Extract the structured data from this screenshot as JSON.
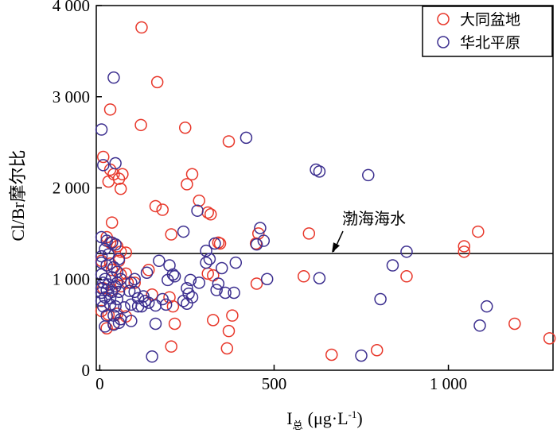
{
  "chart_data": {
    "type": "scatter",
    "xlabel": "I",
    "xlabel_sub": "总",
    "xlabel_unit": "(μg·L",
    "xlabel_unit_sup": "-1",
    "xlabel_unit_close": ")",
    "ylabel": "Cl/Br摩尔比",
    "xlim": [
      -10,
      1300
    ],
    "ylim": [
      0,
      4000
    ],
    "x_ticks": [
      0,
      500,
      1000
    ],
    "x_tick_labels": [
      "0",
      "500",
      "1 000"
    ],
    "y_ticks": [
      0,
      1000,
      2000,
      3000,
      4000
    ],
    "y_tick_labels": [
      "0",
      "1 000",
      "2 000",
      "3 000",
      "4 000"
    ],
    "legend_position": "top-right",
    "reference_line": {
      "y": 1280,
      "label": "渤海海水"
    },
    "series": [
      {
        "name": "大同盆地",
        "color": "#e8372a",
        "points": [
          [
            120,
            3760
          ],
          [
            165,
            3160
          ],
          [
            30,
            2860
          ],
          [
            118,
            2690
          ],
          [
            245,
            2660
          ],
          [
            370,
            2510
          ],
          [
            10,
            2340
          ],
          [
            30,
            2200
          ],
          [
            40,
            2150
          ],
          [
            55,
            2100
          ],
          [
            65,
            2150
          ],
          [
            25,
            2070
          ],
          [
            60,
            1990
          ],
          [
            265,
            2150
          ],
          [
            250,
            2040
          ],
          [
            285,
            1860
          ],
          [
            160,
            1800
          ],
          [
            180,
            1760
          ],
          [
            310,
            1730
          ],
          [
            318,
            1710
          ],
          [
            35,
            1620
          ],
          [
            205,
            1490
          ],
          [
            340,
            1400
          ],
          [
            345,
            1390
          ],
          [
            455,
            1500
          ],
          [
            448,
            1390
          ],
          [
            600,
            1500
          ],
          [
            1045,
            1360
          ],
          [
            1085,
            1520
          ],
          [
            1045,
            1300
          ],
          [
            20,
            1460
          ],
          [
            30,
            1400
          ],
          [
            50,
            1360
          ],
          [
            60,
            1300
          ],
          [
            75,
            1290
          ],
          [
            5,
            1200
          ],
          [
            30,
            1170
          ],
          [
            55,
            1200
          ],
          [
            35,
            1100
          ],
          [
            60,
            1050
          ],
          [
            75,
            1060
          ],
          [
            140,
            1100
          ],
          [
            310,
            1060
          ],
          [
            325,
            1040
          ],
          [
            450,
            950
          ],
          [
            585,
            1030
          ],
          [
            880,
            1030
          ],
          [
            10,
            900
          ],
          [
            35,
            880
          ],
          [
            60,
            920
          ],
          [
            80,
            960
          ],
          [
            100,
            960
          ],
          [
            150,
            830
          ],
          [
            200,
            800
          ],
          [
            210,
            700
          ],
          [
            5,
            650
          ],
          [
            25,
            610
          ],
          [
            50,
            620
          ],
          [
            75,
            590
          ],
          [
            40,
            510
          ],
          [
            20,
            460
          ],
          [
            380,
            600
          ],
          [
            215,
            510
          ],
          [
            325,
            550
          ],
          [
            370,
            430
          ],
          [
            205,
            260
          ],
          [
            365,
            240
          ],
          [
            665,
            170
          ],
          [
            795,
            220
          ],
          [
            1190,
            510
          ],
          [
            1290,
            350
          ]
        ]
      },
      {
        "name": "华北平原",
        "color": "#3c2f8f",
        "points": [
          [
            40,
            3210
          ],
          [
            5,
            2640
          ],
          [
            420,
            2550
          ],
          [
            620,
            2200
          ],
          [
            630,
            2180
          ],
          [
            770,
            2140
          ],
          [
            45,
            2270
          ],
          [
            10,
            2250
          ],
          [
            280,
            1750
          ],
          [
            460,
            1560
          ],
          [
            240,
            1520
          ],
          [
            470,
            1420
          ],
          [
            450,
            1380
          ],
          [
            330,
            1390
          ],
          [
            305,
            1310
          ],
          [
            5,
            1460
          ],
          [
            20,
            1420
          ],
          [
            35,
            1400
          ],
          [
            45,
            1380
          ],
          [
            15,
            1330
          ],
          [
            5,
            1250
          ],
          [
            25,
            1270
          ],
          [
            55,
            1220
          ],
          [
            880,
            1300
          ],
          [
            5,
            1180
          ],
          [
            20,
            1150
          ],
          [
            40,
            1130
          ],
          [
            50,
            1080
          ],
          [
            5,
            1050
          ],
          [
            15,
            1000
          ],
          [
            35,
            1020
          ],
          [
            60,
            1000
          ],
          [
            10,
            960
          ],
          [
            25,
            940
          ],
          [
            45,
            920
          ],
          [
            5,
            900
          ],
          [
            20,
            880
          ],
          [
            35,
            860
          ],
          [
            55,
            860
          ],
          [
            5,
            850
          ],
          [
            15,
            800
          ],
          [
            30,
            790
          ],
          [
            50,
            780
          ],
          [
            5,
            760
          ],
          [
            10,
            700
          ],
          [
            30,
            720
          ],
          [
            45,
            700
          ],
          [
            70,
            690
          ],
          [
            90,
            720
          ],
          [
            110,
            700
          ],
          [
            20,
            600
          ],
          [
            40,
            600
          ],
          [
            60,
            560
          ],
          [
            15,
            480
          ],
          [
            40,
            500
          ],
          [
            55,
            520
          ],
          [
            90,
            540
          ],
          [
            120,
            700
          ],
          [
            140,
            740
          ],
          [
            160,
            710
          ],
          [
            135,
            1070
          ],
          [
            210,
            1050
          ],
          [
            215,
            1030
          ],
          [
            195,
            990
          ],
          [
            260,
            990
          ],
          [
            285,
            960
          ],
          [
            340,
            950
          ],
          [
            390,
            1180
          ],
          [
            315,
            1220
          ],
          [
            305,
            1180
          ],
          [
            350,
            1120
          ],
          [
            335,
            880
          ],
          [
            360,
            850
          ],
          [
            385,
            850
          ],
          [
            250,
            900
          ],
          [
            255,
            840
          ],
          [
            265,
            800
          ],
          [
            240,
            760
          ],
          [
            250,
            730
          ],
          [
            110,
            790
          ],
          [
            125,
            810
          ],
          [
            100,
            860
          ],
          [
            85,
            870
          ],
          [
            130,
            760
          ],
          [
            180,
            780
          ],
          [
            190,
            720
          ],
          [
            170,
            1200
          ],
          [
            200,
            1150
          ],
          [
            480,
            1000
          ],
          [
            630,
            1010
          ],
          [
            840,
            1150
          ],
          [
            805,
            780
          ],
          [
            1110,
            700
          ],
          [
            1090,
            490
          ],
          [
            160,
            510
          ],
          [
            150,
            150
          ],
          [
            750,
            160
          ],
          [
            90,
            960
          ],
          [
            100,
            1000
          ],
          [
            50,
            960
          ]
        ]
      }
    ]
  }
}
